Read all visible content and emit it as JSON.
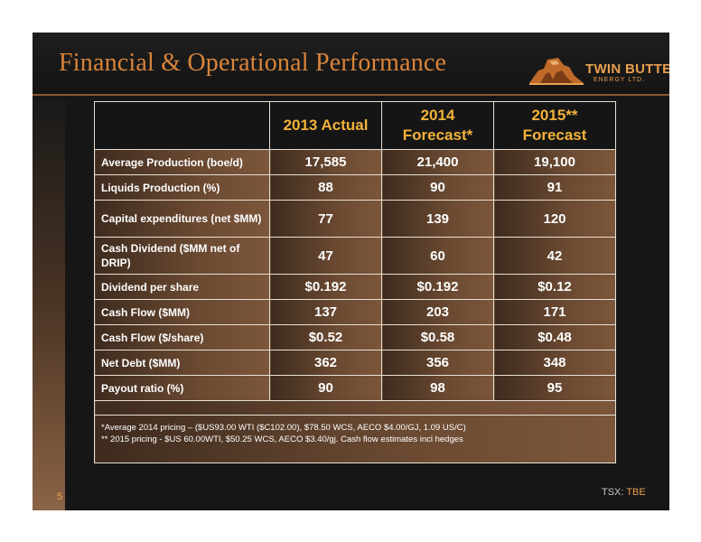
{
  "slide": {
    "title": "Financial & Operational Performance",
    "number": "5",
    "ticker_prefix": "TSX:",
    "ticker_code": "TBE"
  },
  "logo": {
    "name": "TWIN BUTTE",
    "subtitle": "ENERGY LTD."
  },
  "table": {
    "headers": [
      "",
      "2013 Actual",
      "2014 Forecast*",
      "2015** Forecast"
    ],
    "rows": [
      {
        "label": "Average Production (boe/d)",
        "values": [
          "17,585",
          "21,400",
          "19,100"
        ]
      },
      {
        "label": "Liquids Production (%)",
        "values": [
          "88",
          "90",
          "91"
        ]
      },
      {
        "label": "Capital expenditures (net $MM)",
        "values": [
          "77",
          "139",
          "120"
        ]
      },
      {
        "label": "Cash Dividend ($MM net of DRIP)",
        "values": [
          "47",
          "60",
          "42"
        ]
      },
      {
        "label": "Dividend per share",
        "values": [
          "$0.192",
          "$0.192",
          "$0.12"
        ]
      },
      {
        "label": "Cash Flow ($MM)",
        "values": [
          "137",
          "203",
          "171"
        ]
      },
      {
        "label": "Cash Flow ($/share)",
        "values": [
          "$0.52",
          "$0.58",
          "$0.48"
        ]
      },
      {
        "label": "Net Debt ($MM)",
        "values": [
          "362",
          "356",
          "348"
        ]
      },
      {
        "label": "Payout ratio (%)",
        "values": [
          "90",
          "98",
          "95"
        ]
      }
    ],
    "footnotes": [
      "*Average 2014 pricing – ($US93.00 WTI ($C102.00), $78.50 WCS, AECO $4.00/GJ, 1.09 US/C)",
      "** 2015 pricing - $US 60.00WTI, $50.25 WCS, AECO $3.40/gj. Cash flow estimates incl hedges"
    ]
  },
  "colors": {
    "accent": "#e8a050",
    "header_text": "#f2b23a",
    "row_brown": "#6b4a32"
  }
}
